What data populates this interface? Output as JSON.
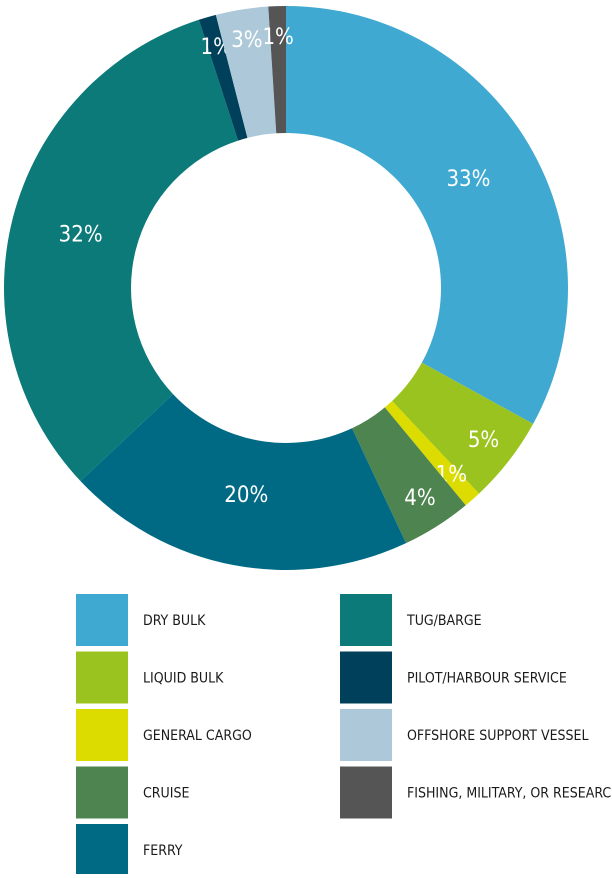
{
  "chart_data": {
    "type": "donut",
    "categories": [
      "DRY BULK",
      "LIQUID BULK",
      "GENERAL CARGO",
      "CRUISE",
      "FERRY",
      "TUG/BARGE",
      "PILOT/HARBOUR SERVICE",
      "OFFSHORE SUPPORT VESSEL",
      "FISHING, MILITARY, OR RESEARCH"
    ],
    "values": [
      33,
      5,
      1,
      4,
      20,
      32,
      1,
      3,
      1
    ],
    "value_labels": [
      "33%",
      "5%",
      "1%",
      "4%",
      "20%",
      "32%",
      "1%",
      "3%",
      "1%"
    ],
    "colors": [
      "#3fa9d2",
      "#9bc31f",
      "#dcdc00",
      "#4e8450",
      "#006a85",
      "#0b7a78",
      "#00405a",
      "#adc9d9",
      "#555555"
    ]
  }
}
